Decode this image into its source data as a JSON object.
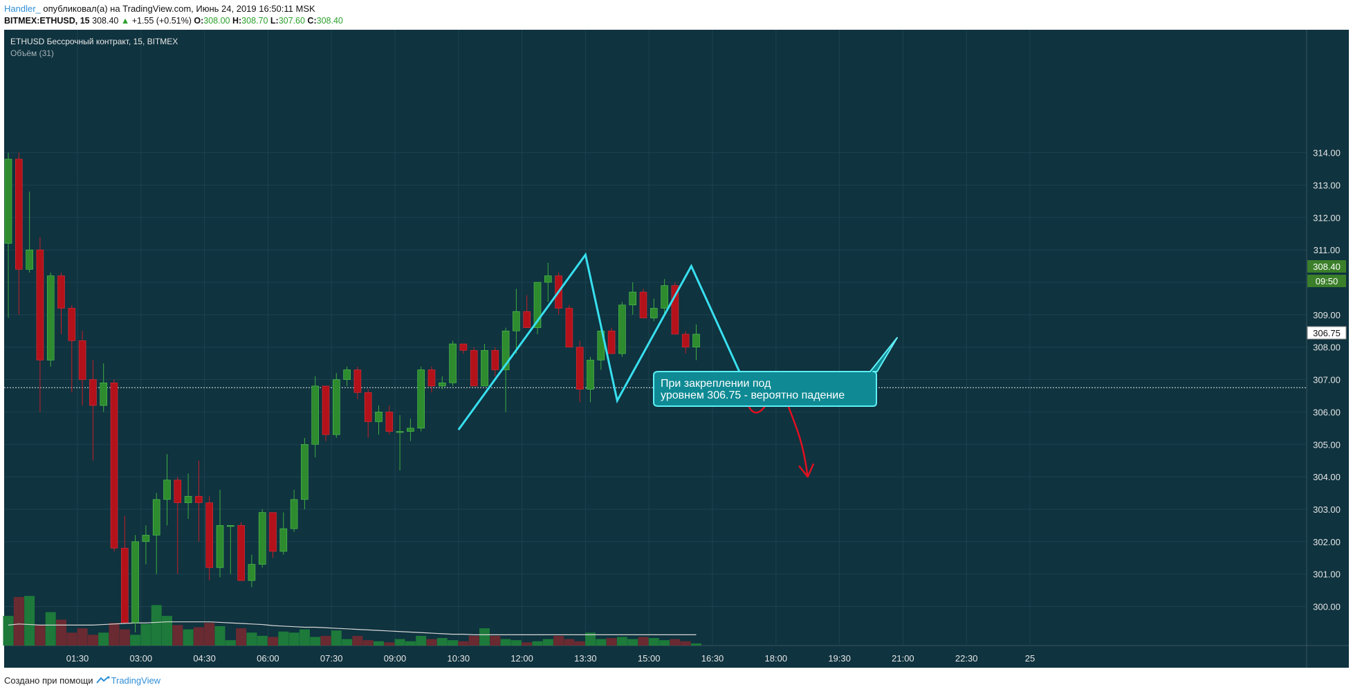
{
  "header": {
    "author": "Handler_",
    "published_text": " опубликовал(а) на TradingView.com, Июнь 24, 2019 16:50:11 MSK",
    "symbol_interval": "BITMEX:ETHUSD, 15",
    "last": "308.40",
    "change": "+1.55 (+0.51%)",
    "o_label": "O:",
    "o": "308.00",
    "h_label": "H:",
    "h": "308.70",
    "l_label": "L:",
    "l": "307.60",
    "c_label": "C:",
    "c": "308.40"
  },
  "legend": {
    "instrument": "ETHUSD Бессрочный контракт, 15, BITMEX",
    "volume": "Объём (31)"
  },
  "price_axis": {
    "ticks": [
      "314.00",
      "313.00",
      "312.00",
      "311.00",
      "310.00",
      "309.00",
      "308.00",
      "307.00",
      "306.00",
      "305.00",
      "304.00",
      "303.00",
      "302.00",
      "301.00",
      "300.00"
    ],
    "last_price_label": "308.40",
    "countdown_label": "09:50",
    "hline_label": "306.75"
  },
  "time_axis": {
    "ticks": [
      "01:30",
      "03:00",
      "04:30",
      "06:00",
      "07:30",
      "09:00",
      "10:30",
      "12:00",
      "13:30",
      "15:00",
      "16:30",
      "18:00",
      "19:30",
      "21:00",
      "22:30",
      "25"
    ]
  },
  "annotation": {
    "line1": "При закреплении под",
    "line2": "уровнем 306.75 - вероятно падение"
  },
  "footer": {
    "created_with": "Создано при помощи",
    "brand": "TradingView"
  },
  "colors": {
    "background": "#0f333f",
    "up": "#2e8b2e",
    "down": "#b3121b",
    "pattern_line": "#38e0f0",
    "forecast_arrow": "#e01020",
    "callout_fill": "#0f8a94",
    "last_price_tag": "#3b7f2a"
  },
  "chart_data": {
    "type": "candlestick",
    "title": "ETHUSD Бессрочный контракт, 15, BITMEX",
    "interval": "15",
    "ylim": [
      299.1,
      314.35
    ],
    "grid": true,
    "horizontal_line": 306.75,
    "candles": [
      {
        "o": 311.2,
        "h": 314.0,
        "l": 308.9,
        "c": 313.8
      },
      {
        "o": 313.8,
        "h": 314.0,
        "l": 309.0,
        "c": 310.4
      },
      {
        "o": 310.4,
        "h": 312.8,
        "l": 310.3,
        "c": 311.0
      },
      {
        "o": 311.0,
        "h": 311.4,
        "l": 306.0,
        "c": 307.6
      },
      {
        "o": 307.6,
        "h": 310.3,
        "l": 307.4,
        "c": 310.2
      },
      {
        "o": 310.2,
        "h": 310.3,
        "l": 308.4,
        "c": 309.2
      },
      {
        "o": 309.2,
        "h": 309.3,
        "l": 306.6,
        "c": 308.2
      },
      {
        "o": 308.2,
        "h": 308.5,
        "l": 306.2,
        "c": 307.0
      },
      {
        "o": 307.0,
        "h": 307.6,
        "l": 304.5,
        "c": 306.2
      },
      {
        "o": 306.2,
        "h": 307.5,
        "l": 306.0,
        "c": 306.9
      },
      {
        "o": 306.9,
        "h": 307.0,
        "l": 301.7,
        "c": 301.8
      },
      {
        "o": 301.8,
        "h": 302.8,
        "l": 299.5,
        "c": 299.5
      },
      {
        "o": 299.5,
        "h": 302.2,
        "l": 299.2,
        "c": 302.0
      },
      {
        "o": 302.0,
        "h": 302.5,
        "l": 301.3,
        "c": 302.2
      },
      {
        "o": 302.2,
        "h": 303.5,
        "l": 301.0,
        "c": 303.3
      },
      {
        "o": 303.3,
        "h": 304.7,
        "l": 302.5,
        "c": 303.9
      },
      {
        "o": 303.9,
        "h": 304.0,
        "l": 301.0,
        "c": 303.2
      },
      {
        "o": 303.2,
        "h": 304.1,
        "l": 302.7,
        "c": 303.4
      },
      {
        "o": 303.4,
        "h": 304.5,
        "l": 302.0,
        "c": 303.2
      },
      {
        "o": 303.2,
        "h": 303.4,
        "l": 300.8,
        "c": 301.2
      },
      {
        "o": 301.2,
        "h": 303.6,
        "l": 300.9,
        "c": 302.5
      },
      {
        "o": 302.5,
        "h": 302.5,
        "l": 301.0,
        "c": 302.5
      },
      {
        "o": 302.5,
        "h": 302.6,
        "l": 300.8,
        "c": 300.8
      },
      {
        "o": 300.8,
        "h": 301.6,
        "l": 300.6,
        "c": 301.3
      },
      {
        "o": 301.3,
        "h": 303.0,
        "l": 301.2,
        "c": 302.9
      },
      {
        "o": 302.9,
        "h": 302.9,
        "l": 301.5,
        "c": 301.7
      },
      {
        "o": 301.7,
        "h": 302.9,
        "l": 301.6,
        "c": 302.4
      },
      {
        "o": 302.4,
        "h": 303.6,
        "l": 302.3,
        "c": 303.3
      },
      {
        "o": 303.3,
        "h": 305.2,
        "l": 303.0,
        "c": 305.0
      },
      {
        "o": 305.0,
        "h": 307.1,
        "l": 304.6,
        "c": 306.8
      },
      {
        "o": 306.8,
        "h": 306.8,
        "l": 305.1,
        "c": 305.3
      },
      {
        "o": 305.3,
        "h": 307.2,
        "l": 305.2,
        "c": 307.0
      },
      {
        "o": 307.0,
        "h": 307.4,
        "l": 306.8,
        "c": 307.3
      },
      {
        "o": 307.3,
        "h": 307.4,
        "l": 306.4,
        "c": 306.6
      },
      {
        "o": 306.6,
        "h": 306.7,
        "l": 305.2,
        "c": 305.7
      },
      {
        "o": 305.7,
        "h": 306.2,
        "l": 305.3,
        "c": 306.0
      },
      {
        "o": 306.0,
        "h": 306.2,
        "l": 305.3,
        "c": 305.4
      },
      {
        "o": 305.4,
        "h": 305.9,
        "l": 304.2,
        "c": 305.4
      },
      {
        "o": 305.4,
        "h": 305.8,
        "l": 305.1,
        "c": 305.5
      },
      {
        "o": 305.5,
        "h": 307.4,
        "l": 305.4,
        "c": 307.3
      },
      {
        "o": 307.3,
        "h": 307.4,
        "l": 306.6,
        "c": 306.8
      },
      {
        "o": 306.8,
        "h": 307.1,
        "l": 306.7,
        "c": 306.9
      },
      {
        "o": 306.9,
        "h": 308.2,
        "l": 306.8,
        "c": 308.1
      },
      {
        "o": 308.1,
        "h": 308.1,
        "l": 307.8,
        "c": 307.9
      },
      {
        "o": 307.9,
        "h": 308.0,
        "l": 306.8,
        "c": 306.8
      },
      {
        "o": 306.8,
        "h": 308.1,
        "l": 306.8,
        "c": 307.9
      },
      {
        "o": 307.9,
        "h": 308.0,
        "l": 307.1,
        "c": 307.3
      },
      {
        "o": 307.3,
        "h": 308.6,
        "l": 306.0,
        "c": 308.5
      },
      {
        "o": 308.5,
        "h": 309.8,
        "l": 307.8,
        "c": 309.1
      },
      {
        "o": 309.1,
        "h": 309.6,
        "l": 308.6,
        "c": 308.6
      },
      {
        "o": 308.6,
        "h": 310.0,
        "l": 308.4,
        "c": 310.0
      },
      {
        "o": 310.0,
        "h": 310.6,
        "l": 309.4,
        "c": 310.2
      },
      {
        "o": 310.2,
        "h": 310.3,
        "l": 309.0,
        "c": 309.2
      },
      {
        "o": 309.2,
        "h": 309.3,
        "l": 308.0,
        "c": 308.0
      },
      {
        "o": 308.0,
        "h": 308.2,
        "l": 306.3,
        "c": 306.7
      },
      {
        "o": 306.7,
        "h": 307.7,
        "l": 306.3,
        "c": 307.6
      },
      {
        "o": 307.6,
        "h": 308.6,
        "l": 307.3,
        "c": 308.5
      },
      {
        "o": 308.5,
        "h": 308.6,
        "l": 307.8,
        "c": 307.8
      },
      {
        "o": 307.8,
        "h": 309.4,
        "l": 307.7,
        "c": 309.3
      },
      {
        "o": 309.3,
        "h": 310.0,
        "l": 309.0,
        "c": 309.7
      },
      {
        "o": 309.7,
        "h": 309.8,
        "l": 308.9,
        "c": 308.9
      },
      {
        "o": 308.9,
        "h": 309.5,
        "l": 308.8,
        "c": 309.2
      },
      {
        "o": 309.2,
        "h": 310.1,
        "l": 309.0,
        "c": 309.9
      },
      {
        "o": 309.9,
        "h": 310.0,
        "l": 308.4,
        "c": 308.4
      },
      {
        "o": 308.4,
        "h": 308.5,
        "l": 307.8,
        "c": 308.0
      },
      {
        "o": 308.0,
        "h": 308.7,
        "l": 307.6,
        "c": 308.4
      }
    ],
    "volume": [
      55,
      90,
      92,
      38,
      62,
      48,
      24,
      32,
      20,
      24,
      42,
      30,
      20,
      40,
      75,
      55,
      38,
      30,
      34,
      42,
      36,
      10,
      32,
      24,
      18,
      16,
      26,
      24,
      30,
      16,
      18,
      28,
      12,
      18,
      10,
      8,
      6,
      12,
      8,
      18,
      12,
      14,
      10,
      8,
      18,
      32,
      18,
      12,
      10,
      6,
      8,
      12,
      18,
      12,
      8,
      24,
      12,
      14,
      16,
      12,
      16,
      14,
      10,
      12,
      8,
      4
    ],
    "volume_ma": [
      38,
      40,
      39,
      38,
      38,
      38,
      38,
      38,
      38,
      39,
      40,
      41,
      42,
      42,
      43,
      44,
      44,
      44,
      44,
      44,
      43,
      42,
      41,
      40,
      39,
      37,
      36,
      35,
      34,
      34,
      33,
      32,
      31,
      30,
      29,
      28,
      27,
      26,
      25,
      24,
      23,
      22,
      21,
      21,
      20,
      20,
      20,
      20,
      20,
      20,
      20,
      20,
      20,
      20,
      20,
      20,
      20,
      20,
      20,
      20,
      20,
      20,
      20,
      20,
      20,
      20
    ],
    "pattern_line": [
      {
        "time": "10:30",
        "price": 305.45
      },
      {
        "time": "13:30",
        "price": 310.85
      },
      {
        "time": "14:15",
        "price": 306.35
      },
      {
        "time": "16:00",
        "price": 310.5
      },
      {
        "time": "17:30",
        "price": 306.2
      }
    ],
    "forecast": [
      {
        "time": "17:30",
        "price": 306.6
      },
      {
        "time": "18:00",
        "price": 306.5
      },
      {
        "time": "18:45",
        "price": 304.0
      }
    ]
  }
}
